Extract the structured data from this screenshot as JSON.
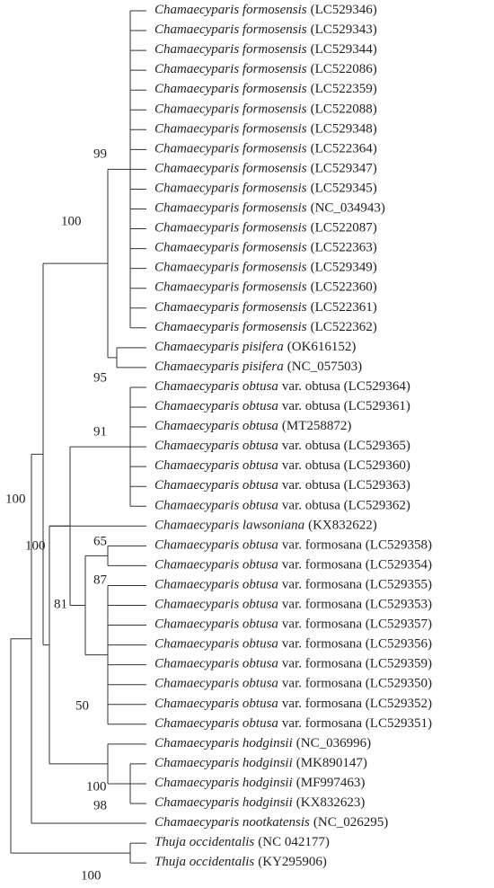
{
  "leaves": [
    {
      "species": "Chamaecyparis formosensis",
      "rest": "(LC529346)"
    },
    {
      "species": "Chamaecyparis formosensis",
      "rest": "(LC529343)"
    },
    {
      "species": "Chamaecyparis formosensis",
      "rest": "(LC529344)"
    },
    {
      "species": "Chamaecyparis formosensis",
      "rest": "(LC522086)"
    },
    {
      "species": "Chamaecyparis formosensis",
      "rest": "(LC522359)"
    },
    {
      "species": "Chamaecyparis formosensis",
      "rest": "(LC522088)"
    },
    {
      "species": "Chamaecyparis formosensis",
      "rest": "(LC529348)"
    },
    {
      "species": "Chamaecyparis formosensis",
      "rest": "(LC522364)"
    },
    {
      "species": "Chamaecyparis formosensis",
      "rest": "(LC529347)"
    },
    {
      "species": "Chamaecyparis formosensis",
      "rest": "(LC529345)"
    },
    {
      "species": "Chamaecyparis formosensis",
      "rest": "(NC_034943)"
    },
    {
      "species": "Chamaecyparis formosensis",
      "rest": "(LC522087)"
    },
    {
      "species": "Chamaecyparis formosensis",
      "rest": "(LC522363)"
    },
    {
      "species": "Chamaecyparis formosensis",
      "rest": "(LC529349)"
    },
    {
      "species": "Chamaecyparis formosensis",
      "rest": "(LC522360)"
    },
    {
      "species": "Chamaecyparis formosensis",
      "rest": "(LC522361)"
    },
    {
      "species": "Chamaecyparis formosensis",
      "rest": "(LC522362)"
    },
    {
      "species": "Chamaecyparis pisifera",
      "rest": "(OK616152)"
    },
    {
      "species": "Chamaecyparis pisifera",
      "rest": "(NC_057503)"
    },
    {
      "species": "Chamaecyparis obtusa",
      "rest": "var. obtusa (LC529364)"
    },
    {
      "species": "Chamaecyparis obtusa",
      "rest": "var. obtusa (LC529361)"
    },
    {
      "species": "Chamaecyparis obtusa",
      "rest": "(MT258872)"
    },
    {
      "species": "Chamaecyparis obtusa",
      "rest": "var. obtusa (LC529365)"
    },
    {
      "species": "Chamaecyparis obtusa",
      "rest": "var. obtusa (LC529360)"
    },
    {
      "species": "Chamaecyparis obtusa",
      "rest": "var. obtusa (LC529363)"
    },
    {
      "species": "Chamaecyparis obtusa",
      "rest": "var. obtusa (LC529362)"
    },
    {
      "species": "Chamaecyparis lawsoniana",
      "rest": "(KX832622)"
    },
    {
      "species": "Chamaecyparis obtusa",
      "rest": "var. formosana (LC529358)"
    },
    {
      "species": "Chamaecyparis obtusa",
      "rest": "var. formosana (LC529354)"
    },
    {
      "species": "Chamaecyparis obtusa",
      "rest": "var. formosana (LC529355)"
    },
    {
      "species": "Chamaecyparis obtusa",
      "rest": "var. formosana (LC529353)"
    },
    {
      "species": "Chamaecyparis obtusa",
      "rest": "var. formosana (LC529357)"
    },
    {
      "species": "Chamaecyparis obtusa",
      "rest": "var. formosana (LC529356)"
    },
    {
      "species": "Chamaecyparis obtusa",
      "rest": "var. formosana (LC529359)"
    },
    {
      "species": "Chamaecyparis obtusa",
      "rest": "var. formosana (LC529350)"
    },
    {
      "species": "Chamaecyparis obtusa",
      "rest": "var. formosana (LC529352)"
    },
    {
      "species": "Chamaecyparis obtusa",
      "rest": "var. formosana (LC529351)"
    },
    {
      "species": "Chamaecyparis hodginsii",
      "rest": "(NC_036996)"
    },
    {
      "species": "Chamaecyparis hodginsii",
      "rest": "(MK890147)"
    },
    {
      "species": "Chamaecyparis hodginsii",
      "rest": "(MF997463)"
    },
    {
      "species": "Chamaecyparis hodginsii",
      "rest": "(KX832623)"
    },
    {
      "species": "Chamaecyparis nootkatensis",
      "rest": "(NC_026295)"
    },
    {
      "species": "Thuja occidentalis",
      "rest": "(NC 042177)"
    },
    {
      "species": "Thuja occidentalis",
      "rest": "(KY295906)"
    }
  ],
  "bootstrap": [
    99,
    100,
    95,
    91,
    100,
    65,
    100,
    87,
    81,
    50,
    100,
    98,
    100
  ]
}
